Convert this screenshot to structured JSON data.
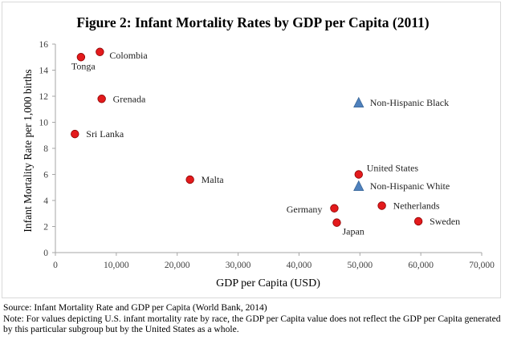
{
  "chart_data": {
    "type": "scatter",
    "title": "Figure 2: Infant Mortality Rates by GDP per Capita (2011)",
    "xlabel": "GDP per Capita (USD)",
    "ylabel": "Infant Mortality Rate per 1,000 births",
    "xlim": [
      0,
      70000
    ],
    "ylim": [
      0,
      16
    ],
    "x_ticks": [
      0,
      10000,
      20000,
      30000,
      40000,
      50000,
      60000,
      70000
    ],
    "x_tick_labels": [
      "0",
      "10,000",
      "20,000",
      "30,000",
      "40,000",
      "50,000",
      "60,000",
      "70,000"
    ],
    "y_ticks": [
      0,
      2,
      4,
      6,
      8,
      10,
      12,
      14,
      16
    ],
    "y_tick_labels": [
      "0",
      "2",
      "4",
      "6",
      "8",
      "10",
      "12",
      "14",
      "16"
    ],
    "grid": false,
    "legend": "none",
    "series": [
      {
        "marker": "circle",
        "color": "#e31a1c",
        "points": [
          {
            "label": "Tonga",
            "x": 4200,
            "y": 15.0,
            "label_pos": "below"
          },
          {
            "label": "Colombia",
            "x": 7300,
            "y": 15.4,
            "label_pos": "right-low"
          },
          {
            "label": "Grenada",
            "x": 7600,
            "y": 11.8,
            "label_pos": "right"
          },
          {
            "label": "Sri Lanka",
            "x": 3200,
            "y": 9.1,
            "label_pos": "right"
          },
          {
            "label": "Malta",
            "x": 22100,
            "y": 5.6,
            "label_pos": "right"
          },
          {
            "label": "United States",
            "x": 49800,
            "y": 6.0,
            "label_pos": "right-high"
          },
          {
            "label": "Germany",
            "x": 45800,
            "y": 3.4,
            "label_pos": "left"
          },
          {
            "label": "Japan",
            "x": 46200,
            "y": 2.3,
            "label_pos": "below-right"
          },
          {
            "label": "Netherlands",
            "x": 53600,
            "y": 3.6,
            "label_pos": "right"
          },
          {
            "label": "Sweden",
            "x": 59600,
            "y": 2.4,
            "label_pos": "right"
          }
        ]
      },
      {
        "marker": "triangle",
        "color": "#4f81bd",
        "points": [
          {
            "label": "Non-Hispanic Black",
            "x": 49800,
            "y": 11.5,
            "label_pos": "right"
          },
          {
            "label": "Non-Hispanic White",
            "x": 49800,
            "y": 5.1,
            "label_pos": "right"
          }
        ]
      }
    ]
  },
  "notes": {
    "source": "Source: Infant Mortality Rate and GDP per Capita (World Bank, 2014)",
    "note": "Note: For values depicting U.S. infant mortality rate by race, the GDP per Capita value does not reflect the GDP per Capita generated by this particular subgroup but by the United States as a whole."
  }
}
